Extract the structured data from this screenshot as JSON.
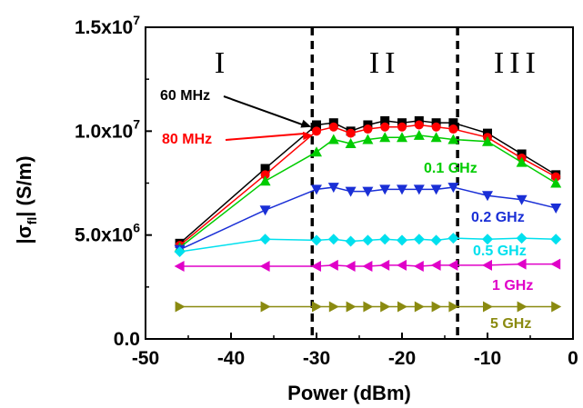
{
  "chart_data": {
    "type": "line",
    "xlabel": "Power (dBm)",
    "ylabel_main": "|σ",
    "ylabel_sub": "fl",
    "ylabel_rest": "| (S/m)",
    "xlim": [
      -50,
      0
    ],
    "ylim": [
      0,
      15000000
    ],
    "x_ticks": [
      -50,
      -40,
      -30,
      -20,
      -10,
      0
    ],
    "x_tick_labels": [
      "-50",
      "-40",
      "-30",
      "-20",
      "-10",
      "0"
    ],
    "y_ticks": [
      {
        "value": 0,
        "mantissa": "0.0",
        "exp": ""
      },
      {
        "value": 5000000,
        "mantissa": "5.0x10",
        "exp": "6"
      },
      {
        "value": 10000000,
        "mantissa": "1.0x10",
        "exp": "7"
      },
      {
        "value": 15000000,
        "mantissa": "1.5x10",
        "exp": "7"
      }
    ],
    "regions": [
      {
        "label": "I",
        "x": -41
      },
      {
        "label": "II",
        "x": -22
      },
      {
        "label": "III",
        "x": -6.5
      }
    ],
    "boundaries": [
      -30.5,
      -13.5
    ],
    "colors": {
      "60 MHz": "#000000",
      "80 MHz": "#ff0000",
      "0.1 GHz": "#00cc00",
      "0.2 GHz": "#1a2fd6",
      "0.5 GHz": "#00e0ee",
      "1 GHz": "#e000c8",
      "5 GHz": "#8a8a10"
    },
    "series": [
      {
        "name": "60 MHz",
        "marker": "square",
        "x": [
          -46,
          -36,
          -30,
          -28,
          -26,
          -24,
          -22,
          -20,
          -18,
          -16,
          -14,
          -10,
          -6,
          -2
        ],
        "y": [
          4600000,
          8200000,
          10300000,
          10400000,
          10000000,
          10300000,
          10500000,
          10400000,
          10500000,
          10400000,
          10400000,
          9900000,
          8900000,
          7900000
        ]
      },
      {
        "name": "80 MHz",
        "marker": "circle",
        "x": [
          -46,
          -36,
          -30,
          -28,
          -26,
          -24,
          -22,
          -20,
          -18,
          -16,
          -14,
          -10,
          -6,
          -2
        ],
        "y": [
          4500000,
          7900000,
          10000000,
          10200000,
          9900000,
          10100000,
          10200000,
          10200000,
          10300000,
          10200000,
          10100000,
          9700000,
          8700000,
          7800000
        ]
      },
      {
        "name": "0.1 GHz",
        "marker": "triangle-up",
        "x": [
          -46,
          -36,
          -30,
          -28,
          -26,
          -24,
          -22,
          -20,
          -18,
          -16,
          -14,
          -10,
          -6,
          -2
        ],
        "y": [
          4400000,
          7600000,
          9000000,
          9600000,
          9400000,
          9600000,
          9700000,
          9700000,
          9800000,
          9700000,
          9600000,
          9500000,
          8500000,
          7500000
        ]
      },
      {
        "name": "0.2 GHz",
        "marker": "triangle-down",
        "x": [
          -46,
          -36,
          -30,
          -28,
          -26,
          -24,
          -22,
          -20,
          -18,
          -16,
          -14,
          -10,
          -6,
          -2
        ],
        "y": [
          4300000,
          6200000,
          7200000,
          7300000,
          7100000,
          7100000,
          7200000,
          7200000,
          7200000,
          7200000,
          7300000,
          6900000,
          6700000,
          6300000
        ]
      },
      {
        "name": "0.5 GHz",
        "marker": "diamond",
        "x": [
          -46,
          -36,
          -30,
          -28,
          -26,
          -24,
          -22,
          -20,
          -18,
          -16,
          -14,
          -10,
          -6,
          -2
        ],
        "y": [
          4200000,
          4800000,
          4750000,
          4800000,
          4700000,
          4750000,
          4800000,
          4750000,
          4800000,
          4750000,
          4850000,
          4800000,
          4850000,
          4800000
        ]
      },
      {
        "name": "1 GHz",
        "marker": "triangle-left",
        "x": [
          -46,
          -36,
          -30,
          -28,
          -26,
          -24,
          -22,
          -20,
          -18,
          -16,
          -14,
          -10,
          -6,
          -2
        ],
        "y": [
          3500000,
          3500000,
          3500000,
          3550000,
          3500000,
          3500000,
          3550000,
          3550000,
          3500000,
          3550000,
          3550000,
          3550000,
          3600000,
          3600000
        ]
      },
      {
        "name": "5 GHz",
        "marker": "triangle-right",
        "x": [
          -46,
          -36,
          -30,
          -28,
          -26,
          -24,
          -22,
          -20,
          -18,
          -16,
          -14,
          -10,
          -6,
          -2
        ],
        "y": [
          1550000,
          1550000,
          1550000,
          1550000,
          1550000,
          1550000,
          1550000,
          1550000,
          1550000,
          1550000,
          1550000,
          1550000,
          1550000,
          1550000
        ]
      }
    ],
    "annotations": [
      {
        "text": "60 MHz",
        "series": "60 MHz",
        "arrow_to": [
          -30.6,
          10200000
        ]
      },
      {
        "text": "80 MHz",
        "series": "80 MHz",
        "arrow_to": [
          -30.4,
          9800000
        ]
      },
      {
        "text": "0.1 GHz",
        "series": "0.1 GHz"
      },
      {
        "text": "0.2 GHz",
        "series": "0.2 GHz"
      },
      {
        "text": "0.5 GHz",
        "series": "0.5 GHz"
      },
      {
        "text": "1 GHz",
        "series": "1 GHz"
      },
      {
        "text": "5 GHz",
        "series": "5 GHz"
      }
    ],
    "grid": false,
    "legend": "none"
  }
}
